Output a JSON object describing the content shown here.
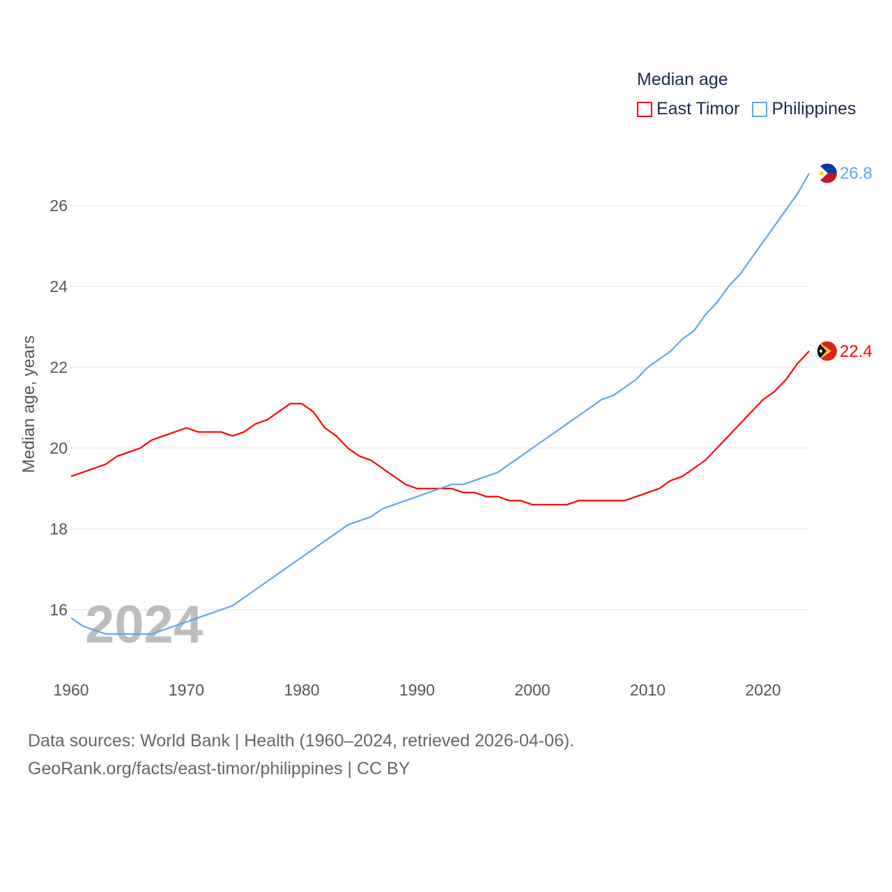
{
  "chart_data": {
    "type": "line",
    "title": "Median age",
    "xlabel": "",
    "ylabel": "Median age, years",
    "xlim": [
      1960,
      2024
    ],
    "ylim": [
      15,
      27
    ],
    "x_ticks": [
      1960,
      1970,
      1980,
      1990,
      2000,
      2010,
      2020
    ],
    "y_ticks": [
      16,
      18,
      20,
      22,
      24,
      26
    ],
    "grid": true,
    "legend_placement": "top-right",
    "year_watermark": "2024",
    "x": [
      1960,
      1961,
      1962,
      1963,
      1964,
      1965,
      1966,
      1967,
      1968,
      1969,
      1970,
      1971,
      1972,
      1973,
      1974,
      1975,
      1976,
      1977,
      1978,
      1979,
      1980,
      1981,
      1982,
      1983,
      1984,
      1985,
      1986,
      1987,
      1988,
      1989,
      1990,
      1991,
      1992,
      1993,
      1994,
      1995,
      1996,
      1997,
      1998,
      1999,
      2000,
      2001,
      2002,
      2003,
      2004,
      2005,
      2006,
      2007,
      2008,
      2009,
      2010,
      2011,
      2012,
      2013,
      2014,
      2015,
      2016,
      2017,
      2018,
      2019,
      2020,
      2021,
      2022,
      2023,
      2024
    ],
    "series": [
      {
        "name": "East Timor",
        "color": "#ff0000",
        "end_label": "22.4",
        "values": [
          19.3,
          19.4,
          19.5,
          19.6,
          19.8,
          19.9,
          20.0,
          20.2,
          20.3,
          20.4,
          20.5,
          20.4,
          20.4,
          20.4,
          20.3,
          20.4,
          20.6,
          20.7,
          20.9,
          21.1,
          21.1,
          20.9,
          20.5,
          20.3,
          20.0,
          19.8,
          19.7,
          19.5,
          19.3,
          19.1,
          19.0,
          19.0,
          19.0,
          19.0,
          18.9,
          18.9,
          18.8,
          18.8,
          18.7,
          18.7,
          18.6,
          18.6,
          18.6,
          18.6,
          18.7,
          18.7,
          18.7,
          18.7,
          18.7,
          18.8,
          18.9,
          19.0,
          19.2,
          19.3,
          19.5,
          19.7,
          20.0,
          20.3,
          20.6,
          20.9,
          21.2,
          21.4,
          21.7,
          22.1,
          22.4
        ]
      },
      {
        "name": "Philippines",
        "color": "#5ea5ef",
        "end_label": "26.8",
        "values": [
          15.8,
          15.6,
          15.5,
          15.4,
          15.4,
          15.4,
          15.4,
          15.4,
          15.5,
          15.6,
          15.7,
          15.8,
          15.9,
          16.0,
          16.1,
          16.3,
          16.5,
          16.7,
          16.9,
          17.1,
          17.3,
          17.5,
          17.7,
          17.9,
          18.1,
          18.2,
          18.3,
          18.5,
          18.6,
          18.7,
          18.8,
          18.9,
          19.0,
          19.1,
          19.1,
          19.2,
          19.3,
          19.4,
          19.6,
          19.8,
          20.0,
          20.2,
          20.4,
          20.6,
          20.8,
          21.0,
          21.2,
          21.3,
          21.5,
          21.7,
          22.0,
          22.2,
          22.4,
          22.7,
          22.9,
          23.3,
          23.6,
          24.0,
          24.3,
          24.7,
          25.1,
          25.5,
          25.9,
          26.3,
          26.8
        ]
      }
    ]
  },
  "footer": {
    "line1": "Data sources: World Bank | Health (1960–2024, retrieved 2026-04-06).",
    "line2": "GeoRank.org/facts/east-timor/philippines | CC BY"
  }
}
